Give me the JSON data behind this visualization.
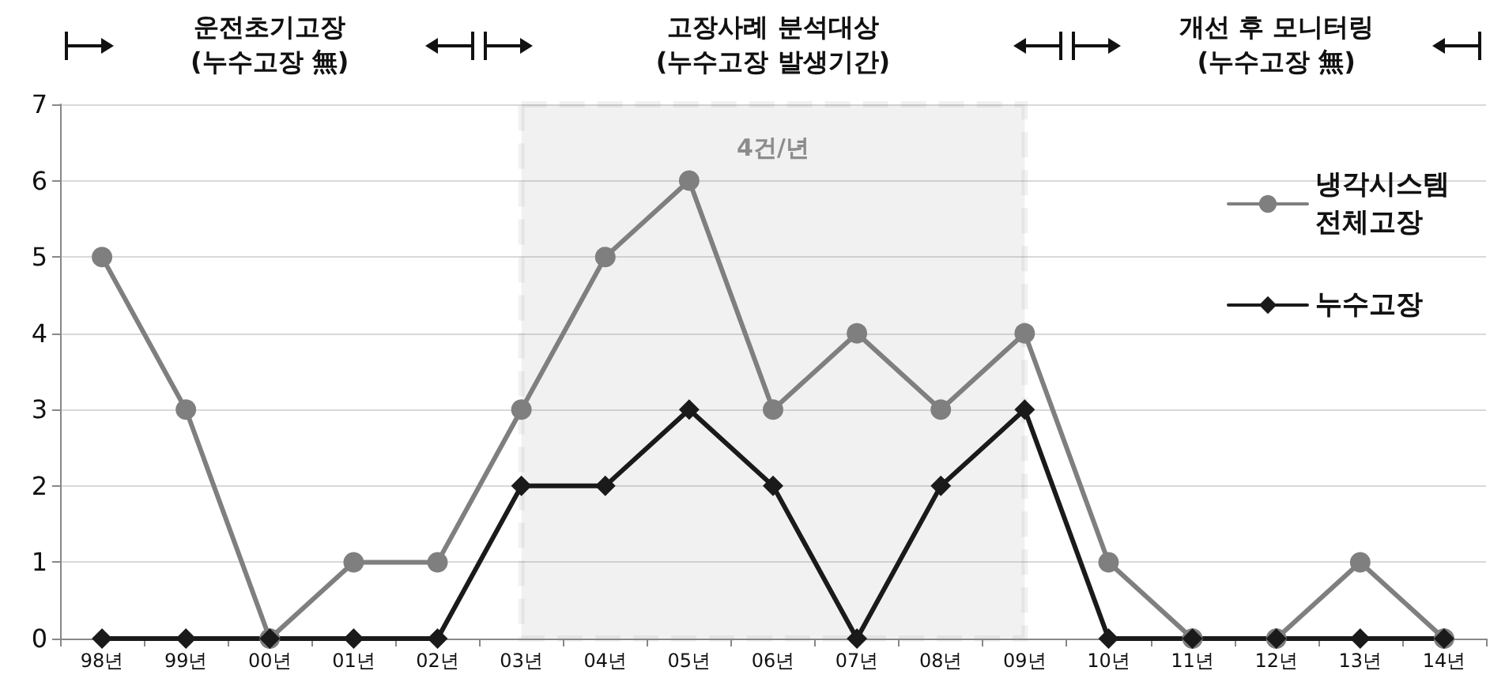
{
  "chart_data": {
    "type": "line",
    "categories": [
      "98년",
      "99년",
      "00년",
      "01년",
      "02년",
      "03년",
      "04년",
      "05년",
      "06년",
      "07년",
      "08년",
      "09년",
      "10년",
      "11년",
      "12년",
      "13년",
      "14년"
    ],
    "series": [
      {
        "name": "냉각시스템\n전체고장",
        "color": "#7f7f7f",
        "marker": "circle",
        "values": [
          5,
          3,
          0,
          1,
          1,
          3,
          5,
          6,
          3,
          4,
          3,
          4,
          1,
          0,
          0,
          1,
          0
        ]
      },
      {
        "name": "누수고장",
        "color": "#1a1a1a",
        "marker": "diamond",
        "values": [
          0,
          0,
          0,
          0,
          0,
          2,
          2,
          3,
          2,
          0,
          2,
          3,
          0,
          0,
          0,
          0,
          0
        ]
      }
    ],
    "ylim": [
      0,
      7
    ],
    "yticks": [
      0,
      1,
      2,
      3,
      4,
      5,
      6,
      7
    ],
    "grid": "y",
    "legend": "top right",
    "line_style": "solid",
    "bands": [
      {
        "axis": "x",
        "from": "03년",
        "to": "09년",
        "label": "4건/년",
        "color": "#8c8c8c"
      }
    ],
    "annotations": [
      "운전초기고장\n(누수고장 無)",
      "고장사례 분석대상\n(누수고장 발생기간)",
      "개선 후 모니터링\n(누수고장 無)"
    ]
  }
}
